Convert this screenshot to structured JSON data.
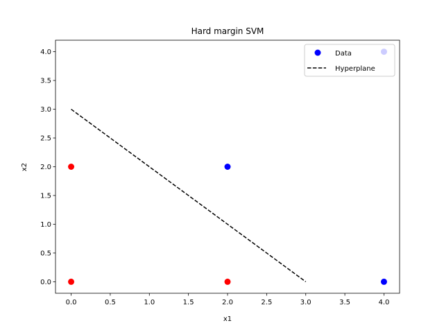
{
  "chart_data": {
    "type": "scatter",
    "title": "Hard margin SVM",
    "xlabel": "x1",
    "ylabel": "x2",
    "xlim": [
      -0.2,
      4.2
    ],
    "ylim": [
      -0.2,
      4.2
    ],
    "xticks": [
      0.0,
      0.5,
      1.0,
      1.5,
      2.0,
      2.5,
      3.0,
      3.5,
      4.0
    ],
    "yticks": [
      0.0,
      0.5,
      1.0,
      1.5,
      2.0,
      2.5,
      3.0,
      3.5,
      4.0
    ],
    "xtick_labels": [
      "0.0",
      "0.5",
      "1.0",
      "1.5",
      "2.0",
      "2.5",
      "3.0",
      "3.5",
      "4.0"
    ],
    "ytick_labels": [
      "0.0",
      "0.5",
      "1.0",
      "1.5",
      "2.0",
      "2.5",
      "3.0",
      "3.5",
      "4.0"
    ],
    "grid": false,
    "legend_position": "top-right",
    "series": [
      {
        "name": "Data",
        "kind": "scatter",
        "points": [
          {
            "x": 0,
            "y": 0,
            "color": "#ff0000"
          },
          {
            "x": 0,
            "y": 2,
            "color": "#ff0000"
          },
          {
            "x": 2,
            "y": 0,
            "color": "#ff0000"
          },
          {
            "x": 2,
            "y": 2,
            "color": "#0000ff"
          },
          {
            "x": 4,
            "y": 0,
            "color": "#0000ff"
          },
          {
            "x": 4,
            "y": 4,
            "color": "#0000ff"
          }
        ],
        "legend_color": "#0000ff"
      },
      {
        "name": "Hyperplane",
        "kind": "line",
        "style": "dashed",
        "color": "#000000",
        "x": [
          0,
          3
        ],
        "y": [
          3,
          0
        ]
      }
    ]
  }
}
